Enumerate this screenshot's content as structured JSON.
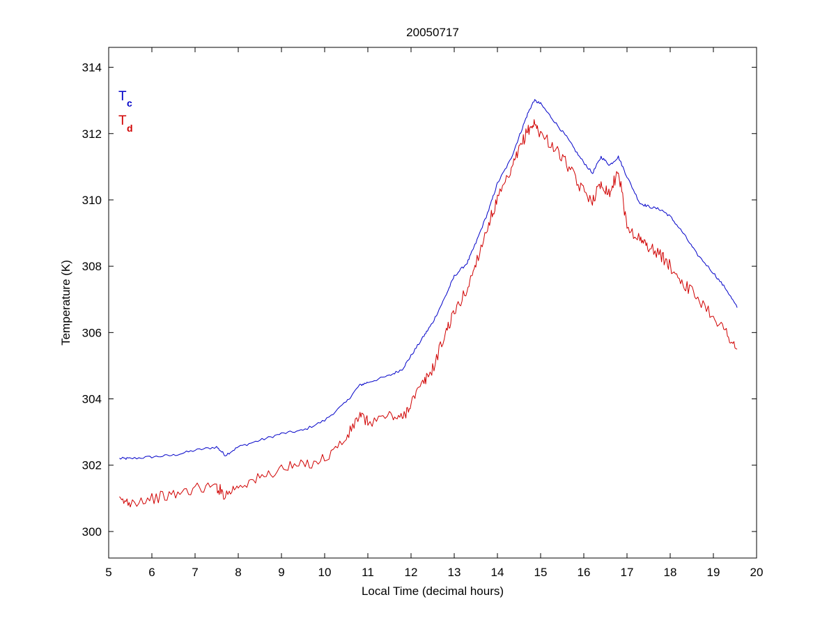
{
  "chart_data": {
    "type": "line",
    "title": "20050717",
    "xlabel": "Local Time (decimal hours)",
    "ylabel": "Temperature (K)",
    "xlim": [
      5,
      20
    ],
    "ylim": [
      299.2,
      314.6
    ],
    "xticks": [
      5,
      6,
      7,
      8,
      9,
      10,
      11,
      12,
      13,
      14,
      15,
      16,
      17,
      18,
      19,
      20
    ],
    "yticks": [
      300,
      302,
      304,
      306,
      308,
      310,
      312,
      314
    ],
    "grid": false,
    "legend": {
      "placement": "top-left",
      "entries": [
        {
          "base": "T",
          "sub": "c",
          "color": "#0000c8"
        },
        {
          "base": "T",
          "sub": "d",
          "color": "#d00000"
        }
      ]
    },
    "series": [
      {
        "key": "Tc",
        "color": "#0000c8",
        "x": [
          5.25,
          5.5,
          6.0,
          6.5,
          7.0,
          7.5,
          7.7,
          8.0,
          8.5,
          9.0,
          9.5,
          10.0,
          10.5,
          10.8,
          11.0,
          11.5,
          11.8,
          12.0,
          12.3,
          12.5,
          12.8,
          13.0,
          13.3,
          13.5,
          13.8,
          14.0,
          14.3,
          14.5,
          14.7,
          14.85,
          15.0,
          15.3,
          15.6,
          15.9,
          16.2,
          16.4,
          16.6,
          16.8,
          17.0,
          17.3,
          17.5,
          17.8,
          18.0,
          18.3,
          18.6,
          19.0,
          19.3,
          19.55
        ],
        "y": [
          302.2,
          302.2,
          302.25,
          302.3,
          302.45,
          302.55,
          302.3,
          302.55,
          302.75,
          302.95,
          303.05,
          303.35,
          303.9,
          304.4,
          304.5,
          304.7,
          304.9,
          305.3,
          305.9,
          306.3,
          307.1,
          307.7,
          308.1,
          308.7,
          309.7,
          310.5,
          311.2,
          311.9,
          312.6,
          313.0,
          312.9,
          312.4,
          311.9,
          311.3,
          310.8,
          311.3,
          311.05,
          311.3,
          310.7,
          309.9,
          309.8,
          309.7,
          309.5,
          309.0,
          308.4,
          307.8,
          307.3,
          306.75
        ]
      },
      {
        "key": "Td",
        "color": "#d00000",
        "x": [
          5.25,
          5.5,
          6.0,
          6.5,
          7.0,
          7.5,
          7.7,
          8.0,
          8.5,
          9.0,
          9.5,
          10.0,
          10.5,
          10.8,
          11.0,
          11.5,
          11.8,
          12.0,
          12.3,
          12.5,
          12.8,
          13.0,
          13.3,
          13.5,
          13.8,
          14.0,
          14.3,
          14.5,
          14.7,
          14.85,
          15.0,
          15.3,
          15.6,
          15.9,
          16.2,
          16.4,
          16.6,
          16.8,
          17.0,
          17.3,
          17.5,
          17.8,
          18.0,
          18.3,
          18.6,
          19.0,
          19.3,
          19.55
        ],
        "y": [
          300.9,
          300.9,
          301.0,
          301.1,
          301.3,
          301.35,
          301.1,
          301.4,
          301.6,
          301.9,
          302.0,
          302.2,
          302.8,
          303.5,
          303.3,
          303.5,
          303.4,
          303.9,
          304.5,
          304.9,
          306.0,
          306.6,
          307.3,
          308.1,
          309.3,
          310.0,
          310.8,
          311.5,
          312.1,
          312.3,
          312.0,
          311.6,
          311.1,
          310.4,
          310.0,
          310.5,
          310.2,
          310.9,
          309.2,
          308.8,
          308.6,
          308.3,
          308.0,
          307.5,
          307.1,
          306.5,
          306.0,
          305.5
        ]
      }
    ]
  }
}
